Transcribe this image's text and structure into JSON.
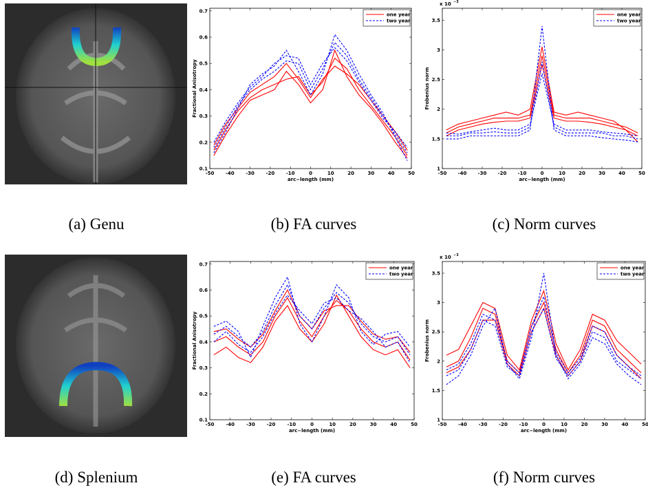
{
  "captions": [
    "(a) Genu",
    "(b) FA curves",
    "(c) Norm curves",
    "(d) Splenium",
    "(e) FA curves",
    "(f) Norm curves"
  ],
  "chart_data": [
    {
      "type": "line",
      "xlabel": "arc−length (mm)",
      "ylabel": "Fractional Anisotropy",
      "x": [
        -48,
        -42,
        -36,
        -30,
        -24,
        -18,
        -12,
        -6,
        0,
        6,
        12,
        18,
        24,
        30,
        36,
        42,
        48
      ],
      "xlim": [
        -50,
        50
      ],
      "xticks": [
        -50,
        -40,
        -30,
        -20,
        -10,
        0,
        10,
        20,
        30,
        40,
        50
      ],
      "ylim": [
        0.1,
        0.71
      ],
      "yticks": [
        0.1,
        0.2,
        0.3,
        0.4,
        0.5,
        0.6,
        0.7
      ],
      "legend": "upper right",
      "series": [
        {
          "name": "one year",
          "color": "#ff0000",
          "dash": false,
          "curves": [
            [
              0.17,
              0.25,
              0.32,
              0.37,
              0.4,
              0.42,
              0.44,
              0.45,
              0.38,
              0.43,
              0.52,
              0.48,
              0.4,
              0.34,
              0.28,
              0.22,
              0.15
            ],
            [
              0.15,
              0.23,
              0.3,
              0.36,
              0.38,
              0.4,
              0.47,
              0.42,
              0.35,
              0.4,
              0.55,
              0.45,
              0.38,
              0.33,
              0.27,
              0.2,
              0.14
            ],
            [
              0.19,
              0.27,
              0.33,
              0.39,
              0.42,
              0.45,
              0.5,
              0.44,
              0.37,
              0.44,
              0.49,
              0.46,
              0.42,
              0.36,
              0.3,
              0.24,
              0.17
            ]
          ]
        },
        {
          "name": "two year",
          "color": "#0000ff",
          "dash": true,
          "curves": [
            [
              0.18,
              0.26,
              0.34,
              0.4,
              0.44,
              0.47,
              0.51,
              0.5,
              0.4,
              0.48,
              0.58,
              0.53,
              0.44,
              0.37,
              0.3,
              0.23,
              0.16
            ],
            [
              0.16,
              0.24,
              0.33,
              0.42,
              0.46,
              0.49,
              0.55,
              0.47,
              0.38,
              0.46,
              0.61,
              0.55,
              0.46,
              0.38,
              0.31,
              0.22,
              0.13
            ],
            [
              0.2,
              0.28,
              0.35,
              0.41,
              0.45,
              0.5,
              0.53,
              0.52,
              0.42,
              0.5,
              0.56,
              0.51,
              0.43,
              0.36,
              0.29,
              0.24,
              0.18
            ]
          ]
        }
      ]
    },
    {
      "type": "line",
      "xlabel": "arc−length (mm)",
      "ylabel": "Frobenius norm",
      "scale_base": "x 10",
      "scale_exponent": "−3",
      "x": [
        -48,
        -42,
        -36,
        -30,
        -24,
        -18,
        -12,
        -6,
        0,
        6,
        12,
        18,
        24,
        30,
        36,
        42,
        48
      ],
      "xlim": [
        -50,
        50
      ],
      "xticks": [
        -50,
        -40,
        -30,
        -20,
        -10,
        0,
        10,
        20,
        30,
        40,
        50
      ],
      "ylim": [
        1,
        3.7
      ],
      "yticks": [
        1,
        1.5,
        2,
        2.5,
        3,
        3.5
      ],
      "legend": "upper right",
      "series": [
        {
          "name": "one year",
          "color": "#ff0000",
          "dash": false,
          "curves": [
            [
              1.6,
              1.7,
              1.75,
              1.8,
              1.85,
              1.85,
              1.85,
              1.9,
              2.9,
              1.9,
              1.85,
              1.85,
              1.85,
              1.8,
              1.75,
              1.7,
              1.6
            ],
            [
              1.65,
              1.75,
              1.8,
              1.85,
              1.9,
              1.95,
              1.9,
              2.0,
              3.05,
              1.95,
              1.9,
              1.95,
              1.9,
              1.85,
              1.8,
              1.65,
              1.45
            ],
            [
              1.55,
              1.65,
              1.7,
              1.75,
              1.78,
              1.8,
              1.8,
              1.85,
              2.75,
              1.85,
              1.8,
              1.8,
              1.78,
              1.75,
              1.7,
              1.65,
              1.55
            ]
          ]
        },
        {
          "name": "two year",
          "color": "#0000ff",
          "dash": true,
          "curves": [
            [
              1.55,
              1.55,
              1.6,
              1.6,
              1.62,
              1.6,
              1.6,
              1.7,
              2.8,
              1.7,
              1.6,
              1.6,
              1.6,
              1.6,
              1.55,
              1.55,
              1.5
            ],
            [
              1.5,
              1.5,
              1.55,
              1.55,
              1.55,
              1.55,
              1.55,
              1.65,
              3.4,
              1.65,
              1.55,
              1.55,
              1.55,
              1.52,
              1.5,
              1.48,
              1.45
            ],
            [
              1.6,
              1.58,
              1.62,
              1.65,
              1.68,
              1.65,
              1.65,
              1.75,
              2.6,
              1.75,
              1.65,
              1.65,
              1.65,
              1.62,
              1.6,
              1.58,
              1.55
            ]
          ]
        }
      ]
    },
    {
      "type": "line",
      "xlabel": "arc−length (mm)",
      "ylabel": "Fractional Anisotropy",
      "x": [
        -48,
        -42,
        -36,
        -30,
        -24,
        -18,
        -12,
        -6,
        0,
        6,
        12,
        18,
        24,
        30,
        36,
        42,
        48
      ],
      "xlim": [
        -50,
        50
      ],
      "xticks": [
        -50,
        -40,
        -30,
        -20,
        -10,
        0,
        10,
        20,
        30,
        40,
        50
      ],
      "ylim": [
        0.1,
        0.71
      ],
      "yticks": [
        0.1,
        0.2,
        0.3,
        0.4,
        0.5,
        0.6,
        0.7
      ],
      "legend": "upper right",
      "series": [
        {
          "name": "one year",
          "color": "#ff0000",
          "dash": false,
          "curves": [
            [
              0.4,
              0.42,
              0.38,
              0.35,
              0.4,
              0.5,
              0.57,
              0.48,
              0.42,
              0.5,
              0.56,
              0.52,
              0.45,
              0.4,
              0.38,
              0.4,
              0.33
            ],
            [
              0.35,
              0.38,
              0.34,
              0.32,
              0.38,
              0.48,
              0.54,
              0.45,
              0.4,
              0.47,
              0.58,
              0.5,
              0.42,
              0.37,
              0.35,
              0.37,
              0.3
            ],
            [
              0.44,
              0.45,
              0.41,
              0.38,
              0.43,
              0.52,
              0.6,
              0.5,
              0.45,
              0.52,
              0.54,
              0.54,
              0.48,
              0.43,
              0.41,
              0.42,
              0.36
            ]
          ]
        },
        {
          "name": "two year",
          "color": "#0000ff",
          "dash": true,
          "curves": [
            [
              0.43,
              0.46,
              0.42,
              0.38,
              0.44,
              0.54,
              0.62,
              0.5,
              0.45,
              0.53,
              0.59,
              0.55,
              0.47,
              0.42,
              0.4,
              0.42,
              0.35
            ],
            [
              0.46,
              0.48,
              0.44,
              0.34,
              0.46,
              0.57,
              0.65,
              0.47,
              0.4,
              0.5,
              0.62,
              0.57,
              0.44,
              0.39,
              0.43,
              0.44,
              0.38
            ],
            [
              0.4,
              0.44,
              0.39,
              0.36,
              0.42,
              0.51,
              0.58,
              0.52,
              0.47,
              0.55,
              0.57,
              0.52,
              0.49,
              0.44,
              0.38,
              0.4,
              0.32
            ]
          ]
        }
      ]
    },
    {
      "type": "line",
      "xlabel": "arc−length (mm)",
      "ylabel": "Frobenius norm",
      "scale_base": "x 10",
      "scale_exponent": "−3",
      "x": [
        -48,
        -42,
        -36,
        -30,
        -24,
        -18,
        -12,
        -6,
        0,
        6,
        12,
        18,
        24,
        30,
        36,
        42,
        48
      ],
      "xlim": [
        -50,
        50
      ],
      "xticks": [
        -50,
        -40,
        -30,
        -20,
        -10,
        0,
        10,
        20,
        30,
        40,
        50
      ],
      "ylim": [
        1,
        3.7
      ],
      "yticks": [
        1,
        1.5,
        2,
        2.5,
        3,
        3.5
      ],
      "legend": "upper right",
      "series": [
        {
          "name": "one year",
          "color": "#ff0000",
          "dash": false,
          "curves": [
            [
              1.9,
              2.0,
              2.4,
              2.9,
              2.8,
              2.0,
              1.8,
              2.6,
              3.0,
              2.2,
              1.8,
              2.1,
              2.7,
              2.6,
              2.2,
              2.0,
              1.8
            ],
            [
              2.1,
              2.2,
              2.6,
              3.0,
              2.9,
              2.1,
              1.85,
              2.7,
              3.2,
              2.3,
              1.85,
              2.2,
              2.8,
              2.7,
              2.35,
              2.15,
              1.95
            ],
            [
              1.8,
              1.9,
              2.2,
              2.7,
              2.7,
              1.95,
              1.75,
              2.5,
              2.9,
              2.1,
              1.75,
              2.0,
              2.6,
              2.5,
              2.1,
              1.9,
              1.7
            ]
          ]
        },
        {
          "name": "two year",
          "color": "#0000ff",
          "dash": true,
          "curves": [
            [
              1.75,
              1.85,
              2.2,
              2.7,
              2.6,
              1.9,
              1.75,
              2.5,
              2.9,
              2.05,
              1.75,
              2.0,
              2.5,
              2.4,
              2.0,
              1.85,
              1.7
            ],
            [
              1.6,
              1.75,
              2.1,
              2.6,
              2.9,
              1.95,
              1.7,
              2.4,
              3.5,
              2.1,
              1.7,
              1.95,
              2.4,
              2.3,
              1.95,
              1.75,
              1.6
            ],
            [
              1.85,
              1.95,
              2.3,
              2.8,
              2.7,
              2.0,
              1.8,
              2.6,
              3.1,
              2.15,
              1.8,
              2.05,
              2.6,
              2.5,
              2.1,
              1.9,
              1.75
            ]
          ]
        }
      ]
    }
  ]
}
